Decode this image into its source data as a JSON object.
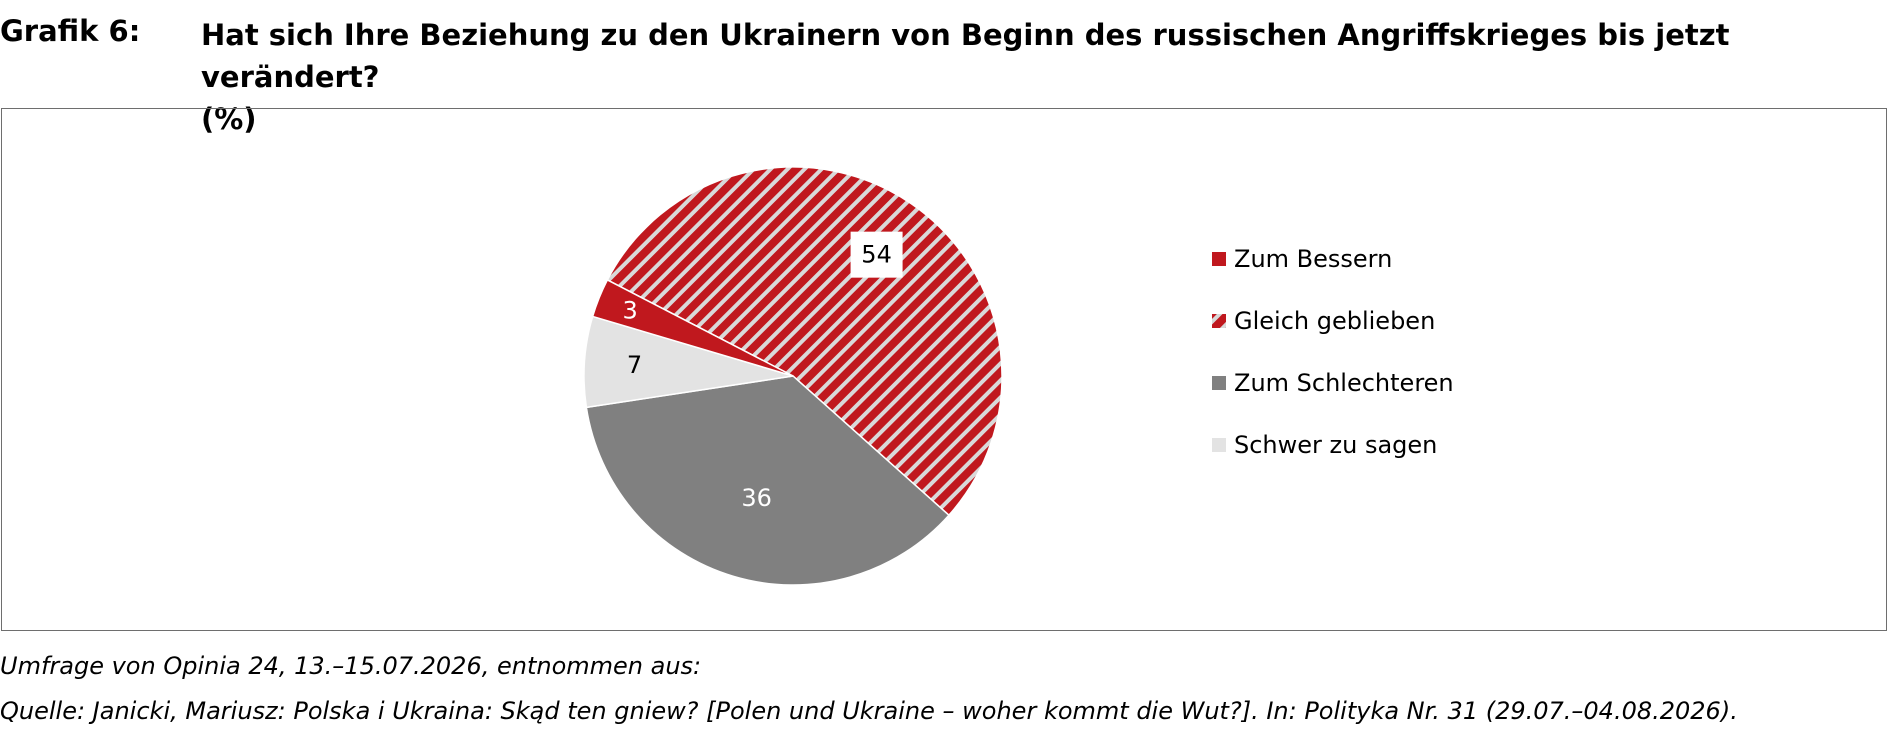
{
  "header": {
    "grafik_label": "Grafik 6:",
    "title_line1": "Hat sich Ihre Beziehung zu den Ukrainern von Beginn des russischen Angriffskrieges bis jetzt verändert?",
    "title_line2": "(%)"
  },
  "chart_data": {
    "type": "pie",
    "slices": [
      {
        "label": "Gleich geblieben",
        "value": 54,
        "color": "#c0181e",
        "pattern": "diagonal-stripes"
      },
      {
        "label": "Zum Schlechteren",
        "value": 36,
        "color": "#808080"
      },
      {
        "label": "Schwer zu sagen",
        "value": 7,
        "color": "#e3e3e3"
      },
      {
        "label": "Zum Bessern",
        "value": 3,
        "color": "#c0181e"
      }
    ],
    "legend": [
      "Zum Bessern",
      "Gleich geblieben",
      "Zum Schlechteren",
      "Schwer zu sagen"
    ],
    "legend_placement": "right",
    "data_labels": [
      "54",
      "36",
      "7",
      "3"
    ]
  },
  "footer": {
    "line1": "Umfrage von Opinia 24, 13.–15.07.2026, entnommen aus:",
    "line2": "Quelle: Janicki, Mariusz: Polska i Ukraina: Skąd ten gniew? [Polen und Ukraine – woher kommt die Wut?]. In: Polityka Nr. 31 (29.07.–04.08.2026)."
  }
}
